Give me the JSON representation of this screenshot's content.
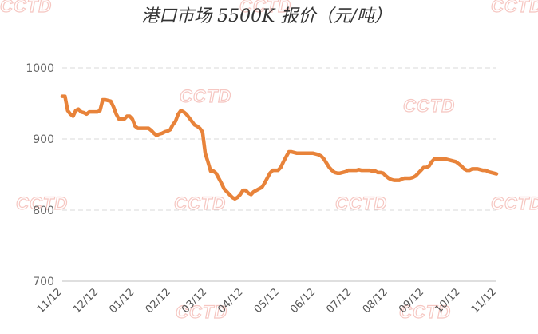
{
  "chart_data": {
    "type": "line",
    "title": "港口市场 5500K 报价（元/吨）",
    "xlabel": "",
    "ylabel": "",
    "ylim": [
      700,
      1000
    ],
    "yticks": [
      700,
      800,
      900,
      1000
    ],
    "xticks": [
      "11/12",
      "12/12",
      "01/12",
      "02/12",
      "03/12",
      "04/12",
      "05/12",
      "06/12",
      "07/12",
      "08/12",
      "09/12",
      "10/12",
      "11/12"
    ],
    "grid": true,
    "colors": {
      "line": "#E8833A",
      "grid": "#d9d9d9",
      "axis": "#bfbfbf",
      "watermark": "#f6c7c2"
    },
    "watermark": "CCTD",
    "series": [
      {
        "values": [
          960,
          960,
          940,
          935,
          932,
          940,
          942,
          938,
          937,
          935,
          938,
          938,
          938,
          938,
          940,
          955,
          955,
          954,
          953,
          945,
          935,
          928,
          928,
          928,
          932,
          932,
          928,
          918,
          915,
          915,
          915,
          915,
          915,
          912,
          908,
          905,
          907,
          908,
          910,
          911,
          913,
          920,
          925,
          935,
          940,
          938,
          935,
          930,
          925,
          920,
          918,
          915,
          910,
          880,
          868,
          855,
          855,
          852,
          845,
          838,
          830,
          826,
          822,
          818,
          816,
          818,
          822,
          828,
          828,
          824,
          822,
          826,
          828,
          830,
          832,
          838,
          845,
          852,
          856,
          856,
          856,
          860,
          868,
          875,
          882,
          882,
          881,
          880,
          880,
          880,
          880,
          880,
          880,
          880,
          879,
          878,
          876,
          872,
          866,
          860,
          856,
          853,
          852,
          852,
          853,
          854,
          856,
          856,
          856,
          856,
          857,
          856,
          856,
          856,
          856,
          855,
          855,
          853,
          853,
          852,
          848,
          845,
          843,
          842,
          842,
          842,
          844,
          845,
          845,
          845,
          846,
          848,
          852,
          856,
          860,
          860,
          862,
          868,
          872,
          872,
          872,
          872,
          872,
          871,
          870,
          869,
          868,
          865,
          862,
          858,
          856,
          856,
          858,
          858,
          858,
          857,
          856,
          856,
          854,
          853,
          852,
          851
        ]
      }
    ]
  }
}
